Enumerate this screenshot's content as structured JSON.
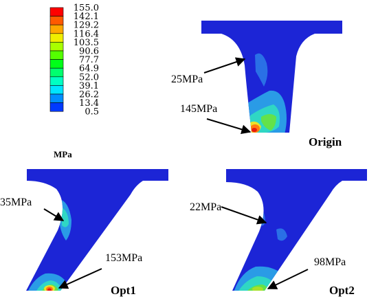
{
  "legend": {
    "unit": "MPa",
    "levels": [
      "155.0",
      "142.1",
      "129.2",
      "116.4",
      "103.5",
      "90.6",
      "77.7",
      "64.9",
      "52.0",
      "39.1",
      "26.2",
      "13.4",
      "0.5"
    ],
    "colors": [
      "#ff0000",
      "#ff5a00",
      "#ffa800",
      "#f0ee00",
      "#a8ff00",
      "#54ff00",
      "#00ff19",
      "#00ff6e",
      "#00ffc2",
      "#00e5ff",
      "#008fff",
      "#003aff"
    ]
  },
  "panels": {
    "origin": {
      "label": "Origin",
      "annotations": [
        "25MPa",
        "145MPa"
      ]
    },
    "opt1": {
      "label": "Opt1",
      "annotations": [
        "35MPa",
        "153MPa"
      ]
    },
    "opt2": {
      "label": "Opt2",
      "annotations": [
        "22MPa",
        "98MPa"
      ]
    }
  },
  "colors": {
    "base": "#1c25d6",
    "low": "#2a9be6",
    "mid": "#2fd7c4",
    "green": "#63e24a",
    "yellow": "#e9e32a",
    "orange": "#ff7a10",
    "red": "#e51a10"
  }
}
